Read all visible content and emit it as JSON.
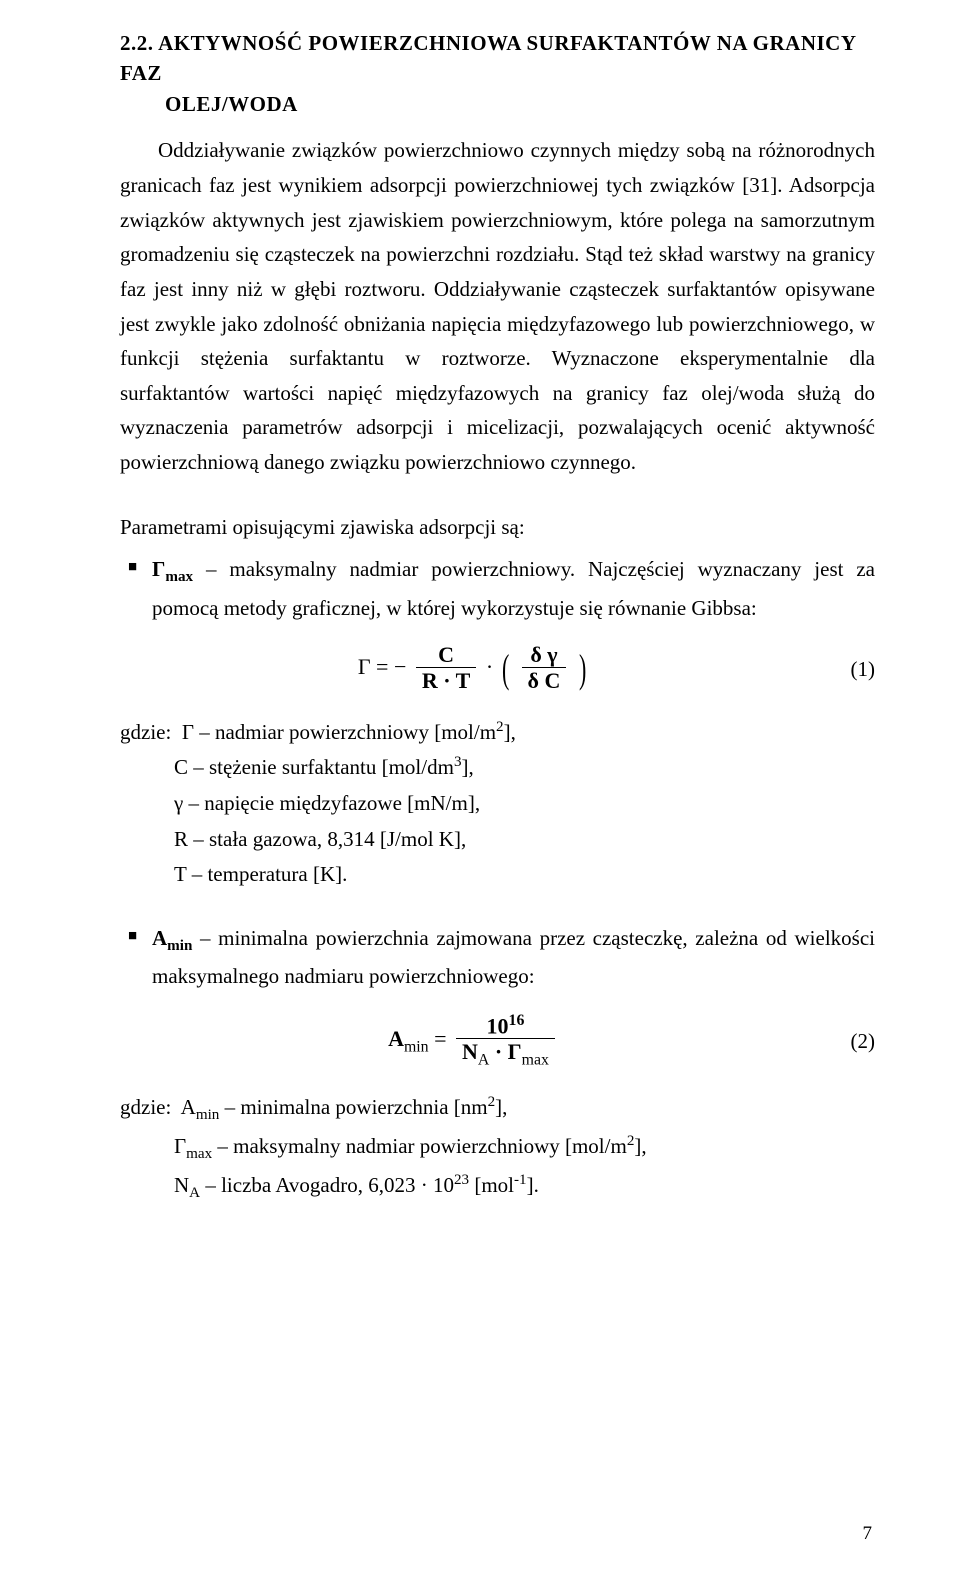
{
  "heading": {
    "number": "2.2.",
    "title_line1": "AKTYWNOŚĆ POWIERZCHNIOWA SURFAKTANTÓW NA GRANICY FAZ",
    "title_line2": "OLEJ/WODA"
  },
  "paragraph": "Oddziaływanie związków powierzchniowo czynnych między sobą na różnorodnych granicach faz jest wynikiem adsorpcji powierzchniowej tych związków [31]. Adsorpcja związków aktywnych jest zjawiskiem powierzchniowym, które polega na samorzutnym gromadzeniu się cząsteczek na powierzchni rozdziału. Stąd też skład warstwy na granicy faz jest inny niż w głębi roztworu. Oddziaływanie cząsteczek surfaktantów opisywane jest zwykle jako zdolność obniżania napięcia międzyfazowego lub powierzchniowego, w funkcji stężenia surfaktantu w roztworze. Wyznaczone eksperymentalnie dla surfaktantów wartości napięć międzyfazowych na granicy faz olej/woda służą do wyznaczenia parametrów adsorpcji i micelizacji, pozwalających ocenić aktywność powierzchniową danego związku powierzchniowo czynnego.",
  "params_intro": "Parametrami opisującymi zjawiska adsorpcji są:",
  "bullet_gamma": {
    "lead": "Γ",
    "sub": "max",
    "rest": " – maksymalny nadmiar powierzchniowy. Najczęściej wyznaczany jest za pomocą metody graficznej, w której wykorzystuje się równanie Gibbsa:"
  },
  "eq1": {
    "lhs": "Γ = −",
    "frac1_num": "C",
    "frac1_den": "R · T",
    "dot": "·",
    "p_open": "(",
    "frac2_num": "δ γ",
    "frac2_den": "δ C",
    "p_close": ")",
    "number": "(1)"
  },
  "defs1": {
    "label": "gdzie:",
    "d1": "Γ – nadmiar powierzchniowy [mol/m",
    "d1_sup": "2",
    "d1_end": "],",
    "d2": "C – stężenie surfaktantu [mol/dm",
    "d2_sup": "3",
    "d2_end": "],",
    "d3": "γ – napięcie międzyfazowe [mN/m],",
    "d4": "R – stała gazowa, 8,314 [J/mol K],",
    "d5": "T – temperatura [K]."
  },
  "bullet_amin": {
    "lead": "A",
    "sub": "min",
    "rest": " – minimalna powierzchnia zajmowana przez cząsteczkę, zależna od wielkości maksymalnego nadmiaru powierzchniowego:"
  },
  "eq2": {
    "lhs_a": "A",
    "lhs_sub": "min",
    "eq": " = ",
    "num": "10",
    "num_sup": "16",
    "den_na": "N",
    "den_na_sub": "A",
    "den_mid": " · Γ",
    "den_gmax_sub": "max",
    "number": "(2)"
  },
  "defs2": {
    "label": "gdzie:",
    "d1a": "A",
    "d1sub": "min",
    "d1b": " – minimalna powierzchnia [nm",
    "d1sup": "2",
    "d1c": "],",
    "d2a": "Γ",
    "d2sub": "max",
    "d2b": " – maksymalny nadmiar powierzchniowy [mol/m",
    "d2sup": "2",
    "d2c": "],",
    "d3a": "N",
    "d3sub": "A",
    "d3b": " – liczba Avogadro, 6,023 · 10",
    "d3sup": "23",
    "d3c": " [mol",
    "d3sup2": "-1",
    "d3d": "]."
  },
  "page_number": "7"
}
